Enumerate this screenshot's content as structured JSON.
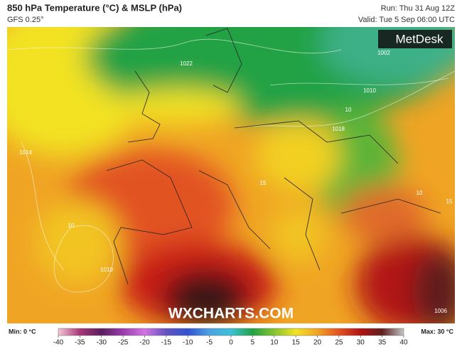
{
  "header": {
    "title": "850 hPa Temperature (°C) & MSLP (hPa)",
    "subtitle": "GFS 0.25°",
    "run": "Run: Thu 31 Aug 12Z",
    "valid": "Valid: Tue 5 Sep 06:00 UTC"
  },
  "logo": "MetDesk",
  "watermark": "WXCHARTS.COM",
  "map_labels": [
    "1022",
    "1010",
    "1014",
    "1018",
    "10",
    "1010",
    "1006",
    "1002",
    "10",
    "15",
    "10",
    "15"
  ],
  "footer": {
    "min": "Min: 0 °C",
    "max": "Max: 30 °C"
  },
  "colorbar": {
    "ticks": [
      -40,
      -35,
      -30,
      -25,
      -20,
      -15,
      -10,
      -5,
      0,
      5,
      10,
      15,
      20,
      25,
      30,
      35,
      40
    ],
    "colors": [
      "#f6c6d6",
      "#a83878",
      "#5a1c5c",
      "#9a3cb0",
      "#d274e2",
      "#6452c2",
      "#3252d2",
      "#4ea2e2",
      "#3cc2d8",
      "#22a244",
      "#86c432",
      "#f2e224",
      "#f2a424",
      "#e25222",
      "#b21212",
      "#5e1e1e",
      "#c4c4c4"
    ]
  }
}
